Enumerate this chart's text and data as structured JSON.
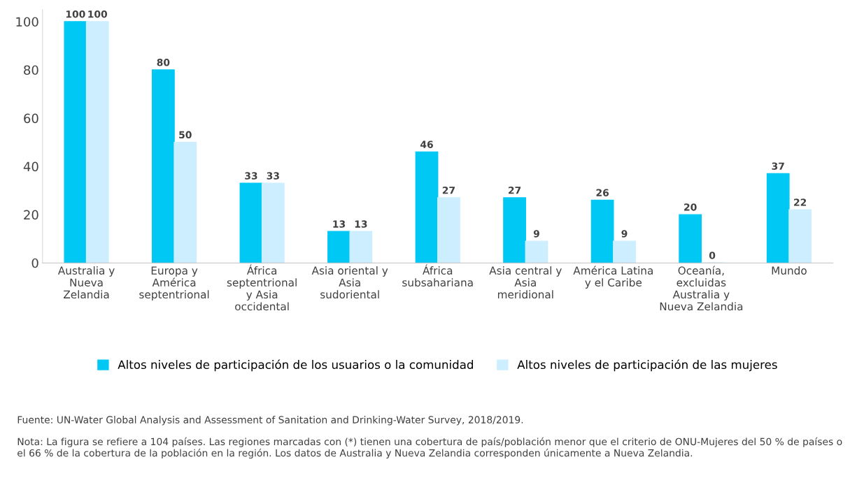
{
  "chart_data": {
    "type": "bar",
    "categories": [
      "Australia y\nNueva\nZelandia",
      "Europa y\nAmérica\nseptentrional",
      "África\nseptentrional\ny Asia\noccidental",
      "Asia oriental y\nAsia\nsudoriental",
      "África\nsubsahariana",
      "Asia central y\nAsia\nmeridional",
      "América Latina\ny el Caribe",
      "Oceanía,\nexcluidas\nAustralia y\nNueva Zelandia",
      "Mundo"
    ],
    "series": [
      {
        "name": "Altos niveles de participación de los usuarios o la comunidad",
        "color": "#00c8f5",
        "values": [
          100,
          80,
          33,
          13,
          46,
          27,
          26,
          20,
          37
        ]
      },
      {
        "name": "Altos niveles de participación de las mujeres",
        "color": "#cdeeff",
        "values": [
          100,
          50,
          33,
          13,
          27,
          9,
          9,
          0,
          22
        ]
      }
    ],
    "ylim": [
      0,
      105
    ],
    "yticks": [
      0,
      20,
      40,
      60,
      80,
      100
    ],
    "data_labels": true,
    "grid": false,
    "legend": "bottom",
    "annotations": [
      "Fuente: UN-Water Global Analysis and Assessment of Sanitation and Drinking-Water Survey, 2018/2019.",
      "Nota: La figura se refiere a 104 países. Las regiones marcadas con (*) tienen una cobertura de país/población menor que el criterio de ONU-Mujeres del 50 % de países o el 66 % de la cobertura de la población en la región. Los datos de Australia y Nueva Zelandia corresponden únicamente a Nueva Zelandia."
    ]
  }
}
